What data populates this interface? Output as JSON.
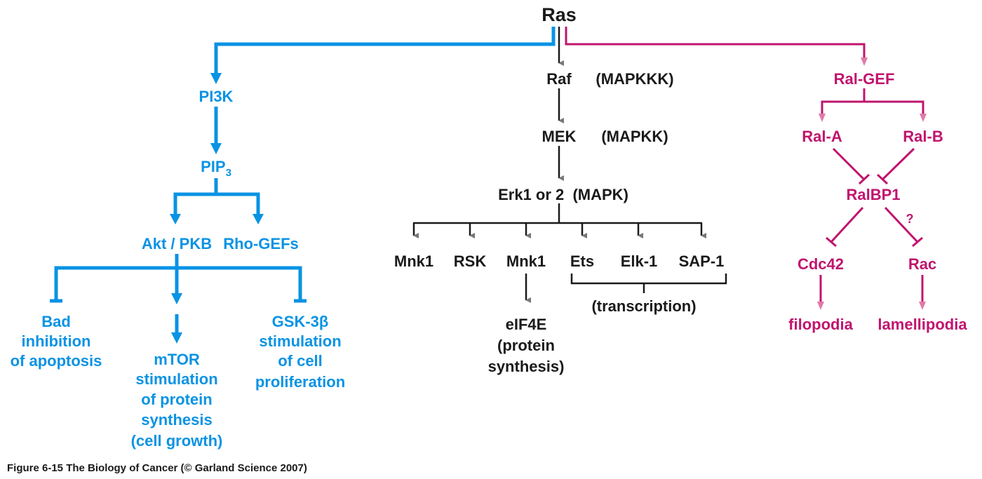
{
  "colors": {
    "ras_pi3k_branch": "#0a93e4",
    "map_kinase_branch": "#1a1a1a",
    "ral_branch": "#c0146e",
    "arrowhead_gray": "#777777",
    "arrowhead_pink": "#e07aa8"
  },
  "root": "Ras",
  "mapk": {
    "raf": "Raf",
    "raf_type": "(MAPKKK)",
    "mek": "MEK",
    "mek_type": "(MAPKK)",
    "erk": "Erk1 or 2  (MAPK)",
    "targets": [
      "Mnk1",
      "RSK",
      "Mnk1",
      "Ets",
      "Elk-1",
      "SAP-1"
    ],
    "eif4e": [
      "eIF4E",
      "(protein",
      "synthesis)"
    ],
    "transcription": "(transcription)"
  },
  "pi3k": {
    "pi3k": "PI3K",
    "pip": "PIP",
    "pip_sub": "3",
    "akt": "Akt / PKB",
    "rho": "Rho-GEFs",
    "bad": [
      "Bad",
      "inhibition",
      "of apoptosis"
    ],
    "mtor": [
      "mTOR",
      "stimulation",
      "of protein",
      "synthesis",
      "(cell growth)"
    ],
    "gsk": [
      "GSK-3β",
      "stimulation",
      "of cell",
      "proliferation"
    ]
  },
  "ral": {
    "ralgef": "Ral-GEF",
    "rala": "Ral-A",
    "ralb": "Ral-B",
    "ralbp1": "RalBP1",
    "question": "?",
    "cdc42": "Cdc42",
    "rac": "Rac",
    "filopodia": "filopodia",
    "lamellipodia": "lamellipodia"
  },
  "caption": "Figure 6-15  The Biology of Cancer (© Garland Science 2007)"
}
